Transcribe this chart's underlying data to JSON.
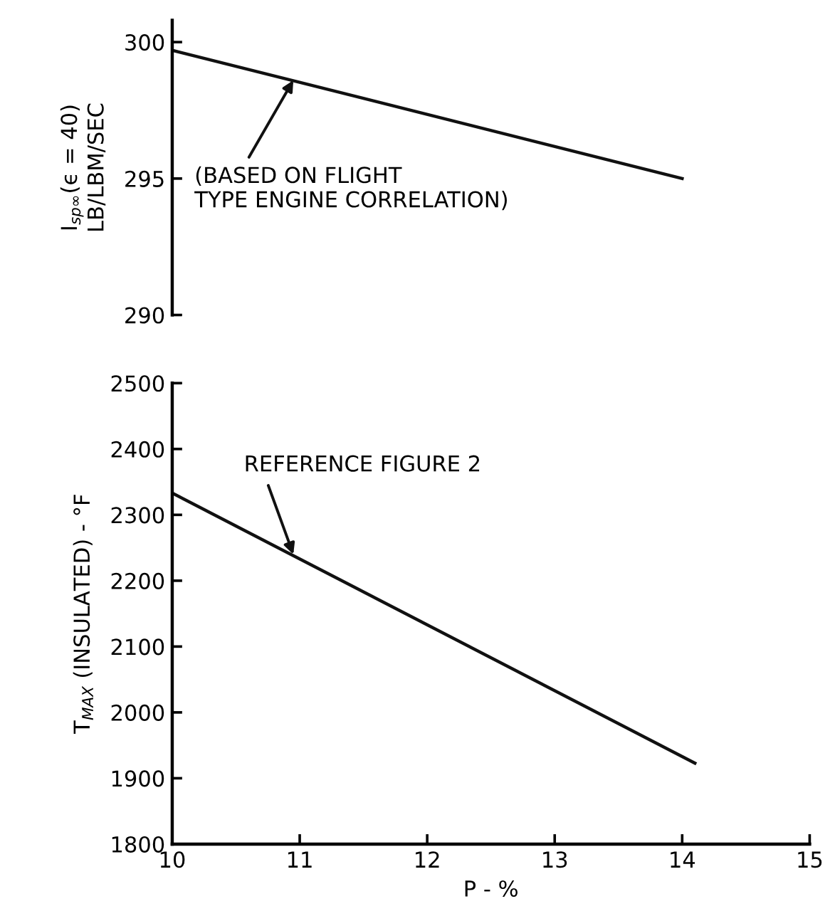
{
  "chart_data": [
    {
      "type": "line",
      "ylabel": "I$_{sp∞}$(ϵ = 40)\nLB/LBM/SEC",
      "x": [
        10,
        14
      ],
      "xlim": [
        10,
        15
      ],
      "ylim": [
        290,
        300.8
      ],
      "yticks": [
        290,
        295,
        300
      ],
      "tick_labels": "y",
      "grid": false,
      "legend": false,
      "series": [
        {
          "color": "#111111",
          "values": [
            299.7,
            295.0
          ]
        }
      ],
      "annotations": [
        {
          "text": "(BASED ON FLIGHT\nTYPE ENGINE CORRELATION)",
          "x": 10.95,
          "y": 298.6
        }
      ]
    },
    {
      "type": "line",
      "xlabel": "P - %",
      "ylabel": "T$_{MAX}$ (INSULATED) - °F",
      "x": [
        10,
        14.1
      ],
      "xlim": [
        10,
        15
      ],
      "xticks": [
        10,
        11,
        12,
        13,
        14,
        15
      ],
      "ylim": [
        1800,
        2500
      ],
      "yticks": [
        1800,
        1900,
        2000,
        2100,
        2200,
        2300,
        2400,
        2500
      ],
      "grid": false,
      "legend": false,
      "series": [
        {
          "color": "#111111",
          "values": [
            2333,
            1923
          ]
        }
      ],
      "annotations": [
        {
          "text": "REFERENCE FIGURE 2",
          "x": 10.95,
          "y": 2240
        }
      ]
    }
  ]
}
